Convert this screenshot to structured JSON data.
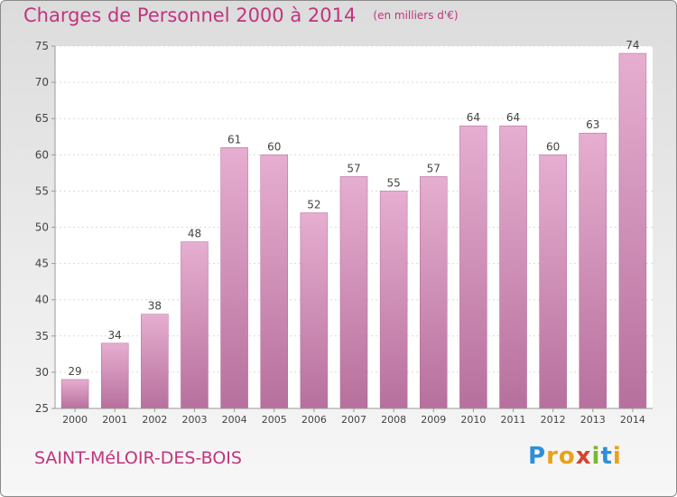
{
  "header": {
    "title": "Charges de Personnel 2000 à 2014",
    "unit_note": "(en milliers d'€)"
  },
  "footer": {
    "commune": "SAINT-MéLOIR-DES-BOIS",
    "logo_text": "Proxiti",
    "logo_letter_colors": [
      "#2f8fd6",
      "#e8a21a",
      "#e8a21a",
      "#d6442f",
      "#7ab82e",
      "#2f8fd6",
      "#e8a21a"
    ]
  },
  "chart_data": {
    "type": "bar",
    "categories": [
      "2000",
      "2001",
      "2002",
      "2003",
      "2004",
      "2005",
      "2006",
      "2007",
      "2008",
      "2009",
      "2010",
      "2011",
      "2012",
      "2013",
      "2014"
    ],
    "values": [
      29,
      34,
      38,
      48,
      61,
      60,
      52,
      57,
      55,
      57,
      64,
      64,
      60,
      63,
      74
    ],
    "ylim": [
      25,
      75
    ],
    "yticks": [
      25,
      30,
      35,
      40,
      45,
      50,
      55,
      60,
      65,
      70,
      75
    ],
    "grid": true,
    "data_labels": true,
    "bar_color_top": "#e6aed0",
    "bar_color_bottom": "#b7709d"
  }
}
